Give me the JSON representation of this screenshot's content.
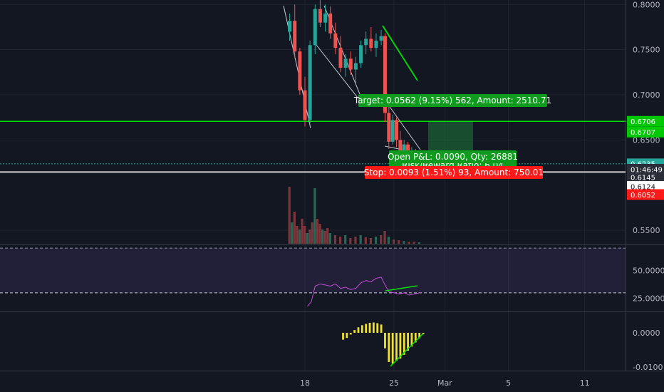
{
  "chart_data": {
    "type": "candlestick",
    "x_axis": {
      "ticks": [
        {
          "label": "18",
          "day": 18
        },
        {
          "label": "25",
          "day": 25
        },
        {
          "label": "Mar",
          "day": 29
        },
        {
          "label": "5",
          "day": 34
        },
        {
          "label": "11",
          "day": 40
        },
        {
          "label": "18",
          "day": 47
        }
      ]
    },
    "price_panel": {
      "ylim": [
        0.535,
        0.805
      ],
      "ticks": [
        {
          "label": "0.8000",
          "value": 0.8
        },
        {
          "label": "0.7500",
          "value": 0.75
        },
        {
          "label": "0.7000",
          "value": 0.7
        },
        {
          "label": "0.6500",
          "value": 0.65
        },
        {
          "label": "0.5500",
          "value": 0.55
        }
      ],
      "price_tags": [
        {
          "label": "0.6706",
          "value": 0.6706,
          "color": "#00c805",
          "text_color": "#ffffff"
        },
        {
          "label": "0.6707",
          "value": 0.6587,
          "color": "#00c805",
          "text_color": "#ffffff"
        },
        {
          "label": "0.6235",
          "value": 0.6235,
          "color": "#26a69a",
          "text_color": "#ffffff"
        },
        {
          "label": "01:46:49",
          "value": 0.6175,
          "color": "#2a2e39",
          "text_color": "#ffffff"
        },
        {
          "label": "0.6145",
          "value": 0.6085,
          "color": "#2a2e39",
          "text_color": "#ffffff"
        },
        {
          "label": "0.6124",
          "value": 0.5985,
          "color": "#ffffff",
          "text_color": "#131722"
        },
        {
          "label": "0.6052",
          "value": 0.5895,
          "color": "#ff1a1a",
          "text_color": "#ffffff"
        }
      ],
      "horizontal_lines": [
        {
          "value": 0.6706,
          "color": "#00e000"
        },
        {
          "value": 0.6235,
          "color": "#26a69a",
          "dotted": true
        },
        {
          "value": 0.6145,
          "color": "#ffffff"
        }
      ],
      "position_labels": {
        "target": "Target: 0.0562 (9.15%) 562, Amount: 2510.71",
        "open_pl": "Open P&L: 0.0090, Qty: 26881",
        "risk_reward": "Risk/Reward Ratio: 6.04",
        "stop": "Stop: 0.0093 (1.51%) 93, Amount: 750.01"
      },
      "candles": [
        {
          "day": 16.8,
          "o": 0.77,
          "h": 0.79,
          "l": 0.76,
          "c": 0.782
        },
        {
          "day": 17.2,
          "o": 0.782,
          "h": 0.8,
          "l": 0.74,
          "c": 0.748
        },
        {
          "day": 17.6,
          "o": 0.748,
          "h": 0.752,
          "l": 0.7,
          "c": 0.705
        },
        {
          "day": 18.0,
          "o": 0.705,
          "h": 0.72,
          "l": 0.665,
          "c": 0.672
        },
        {
          "day": 18.4,
          "o": 0.672,
          "h": 0.76,
          "l": 0.668,
          "c": 0.755
        },
        {
          "day": 18.8,
          "o": 0.755,
          "h": 0.8,
          "l": 0.745,
          "c": 0.795
        },
        {
          "day": 19.2,
          "o": 0.795,
          "h": 0.805,
          "l": 0.775,
          "c": 0.78
        },
        {
          "day": 19.6,
          "o": 0.78,
          "h": 0.8,
          "l": 0.77,
          "c": 0.79
        },
        {
          "day": 20.0,
          "o": 0.79,
          "h": 0.798,
          "l": 0.762,
          "c": 0.768
        },
        {
          "day": 20.4,
          "o": 0.768,
          "h": 0.78,
          "l": 0.745,
          "c": 0.752
        },
        {
          "day": 20.8,
          "o": 0.752,
          "h": 0.765,
          "l": 0.725,
          "c": 0.73
        },
        {
          "day": 21.2,
          "o": 0.73,
          "h": 0.745,
          "l": 0.72,
          "c": 0.74
        },
        {
          "day": 21.6,
          "o": 0.74,
          "h": 0.748,
          "l": 0.722,
          "c": 0.728
        },
        {
          "day": 22.0,
          "o": 0.728,
          "h": 0.742,
          "l": 0.712,
          "c": 0.735
        },
        {
          "day": 22.4,
          "o": 0.735,
          "h": 0.76,
          "l": 0.73,
          "c": 0.755
        },
        {
          "day": 22.8,
          "o": 0.755,
          "h": 0.77,
          "l": 0.745,
          "c": 0.762
        },
        {
          "day": 23.2,
          "o": 0.762,
          "h": 0.775,
          "l": 0.748,
          "c": 0.752
        },
        {
          "day": 23.6,
          "o": 0.752,
          "h": 0.768,
          "l": 0.742,
          "c": 0.76
        },
        {
          "day": 24.0,
          "o": 0.76,
          "h": 0.772,
          "l": 0.755,
          "c": 0.765
        },
        {
          "day": 24.3,
          "o": 0.765,
          "h": 0.768,
          "l": 0.67,
          "c": 0.68
        },
        {
          "day": 24.6,
          "o": 0.68,
          "h": 0.69,
          "l": 0.64,
          "c": 0.648
        },
        {
          "day": 24.9,
          "o": 0.648,
          "h": 0.678,
          "l": 0.645,
          "c": 0.672
        },
        {
          "day": 25.2,
          "o": 0.672,
          "h": 0.675,
          "l": 0.642,
          "c": 0.65
        },
        {
          "day": 25.5,
          "o": 0.65,
          "h": 0.66,
          "l": 0.63,
          "c": 0.635
        },
        {
          "day": 25.8,
          "o": 0.635,
          "h": 0.65,
          "l": 0.628,
          "c": 0.645
        },
        {
          "day": 26.1,
          "o": 0.645,
          "h": 0.648,
          "l": 0.625,
          "c": 0.63
        },
        {
          "day": 26.4,
          "o": 0.63,
          "h": 0.642,
          "l": 0.62,
          "c": 0.638
        },
        {
          "day": 26.7,
          "o": 0.638,
          "h": 0.64,
          "l": 0.615,
          "c": 0.622
        },
        {
          "day": 27.0,
          "o": 0.622,
          "h": 0.63,
          "l": 0.612,
          "c": 0.6235
        }
      ]
    },
    "rsi_panel": {
      "ylim": [
        14,
        72
      ],
      "ticks": [
        {
          "label": "50.0000",
          "value": 50
        },
        {
          "label": "25.0000",
          "value": 25
        }
      ],
      "band": [
        30,
        70
      ],
      "values": [
        {
          "day": 18.2,
          "v": 18
        },
        {
          "day": 18.5,
          "v": 22
        },
        {
          "day": 18.8,
          "v": 36
        },
        {
          "day": 19.2,
          "v": 38
        },
        {
          "day": 19.6,
          "v": 37
        },
        {
          "day": 20.0,
          "v": 36
        },
        {
          "day": 20.4,
          "v": 38
        },
        {
          "day": 20.8,
          "v": 34
        },
        {
          "day": 21.2,
          "v": 35
        },
        {
          "day": 21.6,
          "v": 33
        },
        {
          "day": 22.0,
          "v": 34
        },
        {
          "day": 22.4,
          "v": 39
        },
        {
          "day": 22.8,
          "v": 41
        },
        {
          "day": 23.2,
          "v": 40
        },
        {
          "day": 23.6,
          "v": 43
        },
        {
          "day": 24.0,
          "v": 44
        },
        {
          "day": 24.3,
          "v": 37
        },
        {
          "day": 24.6,
          "v": 31
        },
        {
          "day": 25.0,
          "v": 30
        },
        {
          "day": 25.4,
          "v": 29
        },
        {
          "day": 25.8,
          "v": 30
        },
        {
          "day": 26.2,
          "v": 28
        },
        {
          "day": 26.6,
          "v": 29
        },
        {
          "day": 27.0,
          "v": 30
        }
      ]
    },
    "macd_panel": {
      "ylim": [
        -0.011,
        0.006
      ],
      "ticks": [
        {
          "label": "0.0000",
          "value": 0.0
        },
        {
          "label": "-0.0100",
          "value": -0.01
        }
      ],
      "values": [
        {
          "day": 21.0,
          "v": -0.002
        },
        {
          "day": 21.3,
          "v": -0.0015
        },
        {
          "day": 21.6,
          "v": -0.0005
        },
        {
          "day": 21.9,
          "v": 0.0008
        },
        {
          "day": 22.2,
          "v": 0.0016
        },
        {
          "day": 22.5,
          "v": 0.0022
        },
        {
          "day": 22.8,
          "v": 0.0026
        },
        {
          "day": 23.1,
          "v": 0.0029
        },
        {
          "day": 23.4,
          "v": 0.003
        },
        {
          "day": 23.7,
          "v": 0.0028
        },
        {
          "day": 24.0,
          "v": 0.0024
        },
        {
          "day": 24.3,
          "v": -0.0045
        },
        {
          "day": 24.6,
          "v": -0.0085
        },
        {
          "day": 24.9,
          "v": -0.009
        },
        {
          "day": 25.2,
          "v": -0.0082
        },
        {
          "day": 25.5,
          "v": -0.0075
        },
        {
          "day": 25.8,
          "v": -0.0064
        },
        {
          "day": 26.1,
          "v": -0.0052
        },
        {
          "day": 26.4,
          "v": -0.004
        },
        {
          "day": 26.7,
          "v": -0.0028
        },
        {
          "day": 27.0,
          "v": -0.0016
        },
        {
          "day": 27.3,
          "v": -0.0004
        }
      ]
    },
    "volume_bars": [
      {
        "day": 16.8,
        "v": 80
      },
      {
        "day": 17.0,
        "v": 30
      },
      {
        "day": 17.2,
        "v": 45
      },
      {
        "day": 17.4,
        "v": 25
      },
      {
        "day": 17.6,
        "v": 20
      },
      {
        "day": 17.8,
        "v": 35
      },
      {
        "day": 18.0,
        "v": 25
      },
      {
        "day": 18.2,
        "v": 15
      },
      {
        "day": 18.4,
        "v": 20
      },
      {
        "day": 18.6,
        "v": 30
      },
      {
        "day": 18.8,
        "v": 78
      },
      {
        "day": 19.0,
        "v": 35
      },
      {
        "day": 19.2,
        "v": 28
      },
      {
        "day": 19.4,
        "v": 20
      },
      {
        "day": 19.6,
        "v": 18
      },
      {
        "day": 19.8,
        "v": 22
      },
      {
        "day": 20.0,
        "v": 15
      },
      {
        "day": 20.4,
        "v": 12
      },
      {
        "day": 20.8,
        "v": 10
      },
      {
        "day": 21.2,
        "v": 12
      },
      {
        "day": 21.6,
        "v": 8
      },
      {
        "day": 22.0,
        "v": 10
      },
      {
        "day": 22.4,
        "v": 12
      },
      {
        "day": 22.8,
        "v": 9
      },
      {
        "day": 23.2,
        "v": 8
      },
      {
        "day": 23.6,
        "v": 10
      },
      {
        "day": 24.0,
        "v": 12
      },
      {
        "day": 24.3,
        "v": 18
      },
      {
        "day": 24.6,
        "v": 10
      },
      {
        "day": 25.0,
        "v": 6
      },
      {
        "day": 25.4,
        "v": 5
      },
      {
        "day": 25.8,
        "v": 4
      },
      {
        "day": 26.2,
        "v": 3
      },
      {
        "day": 26.6,
        "v": 3
      },
      {
        "day": 27.0,
        "v": 2
      }
    ]
  }
}
